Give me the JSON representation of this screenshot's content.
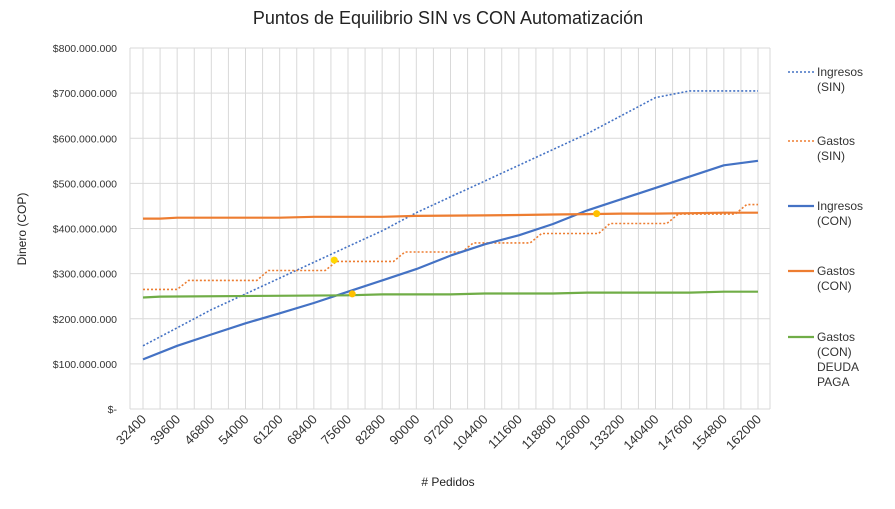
{
  "chart_data": {
    "type": "line",
    "title": "Puntos de Equilibrio SIN vs CON Automatización",
    "xlabel": "# Pedidos",
    "ylabel": "Dinero (COP)",
    "xlim": [
      32400,
      162000
    ],
    "ylim": [
      0,
      800000000
    ],
    "x_ticks": [
      "32400",
      "39600",
      "46800",
      "54000",
      "61200",
      "68400",
      "75600",
      "82800",
      "90000",
      "97200",
      "104400",
      "111600",
      "118800",
      "126000",
      "133200",
      "140400",
      "147600",
      "154800",
      "162000"
    ],
    "y_ticks": [
      "$-",
      "$100.000.000",
      "$200.000.000",
      "$300.000.000",
      "$400.000.000",
      "$500.000.000",
      "$600.000.000",
      "$700.000.000",
      "$800.000.000"
    ],
    "grid": true,
    "legend_position": "right",
    "series": [
      {
        "name": "Ingresos (SIN)",
        "color": "#4472C4",
        "style": "dotted",
        "x": [
          32400,
          39600,
          46800,
          54000,
          61200,
          68400,
          75600,
          82800,
          90000,
          97200,
          104400,
          111600,
          118800,
          126000,
          133200,
          140400,
          147600,
          154800,
          162000
        ],
        "values": [
          140000000,
          180000000,
          220000000,
          255000000,
          290000000,
          325000000,
          360000000,
          395000000,
          435000000,
          470000000,
          505000000,
          540000000,
          575000000,
          610000000,
          650000000,
          690000000,
          705000000,
          705000000,
          705000000
        ]
      },
      {
        "name": "Gastos (SIN)",
        "color": "#ED7D31",
        "style": "dotted",
        "x": [
          32400,
          34800,
          37200,
          39600,
          42000,
          44400,
          46800,
          49200,
          51600,
          54000,
          56400,
          58800,
          61200,
          63600,
          66000,
          68400,
          70800,
          73200,
          75600,
          78000,
          80400,
          82800,
          85200,
          87600,
          90000,
          92400,
          94800,
          97200,
          99600,
          102000,
          104400,
          106800,
          109200,
          111600,
          114000,
          116400,
          118800,
          121200,
          123600,
          126000,
          128400,
          130800,
          133200,
          135600,
          138000,
          140400,
          142800,
          145200,
          147600,
          150000,
          152400,
          154800,
          157200,
          159600,
          162000
        ],
        "values": [
          265000000,
          265000000,
          265000000,
          265000000,
          285000000,
          285000000,
          285000000,
          285000000,
          285000000,
          285000000,
          285000000,
          307000000,
          307000000,
          307000000,
          307000000,
          307000000,
          307000000,
          327000000,
          327000000,
          327000000,
          327000000,
          327000000,
          327000000,
          348000000,
          348000000,
          348000000,
          348000000,
          348000000,
          348000000,
          368000000,
          368000000,
          368000000,
          368000000,
          368000000,
          368000000,
          389000000,
          389000000,
          389000000,
          389000000,
          389000000,
          389000000,
          411000000,
          411000000,
          411000000,
          411000000,
          411000000,
          411000000,
          432000000,
          432000000,
          432000000,
          432000000,
          432000000,
          432000000,
          453000000,
          453000000
        ]
      },
      {
        "name": "Ingresos (CON)",
        "color": "#4472C4",
        "style": "solid",
        "x": [
          32400,
          39600,
          46800,
          54000,
          61200,
          68400,
          75600,
          82800,
          90000,
          97200,
          104400,
          111600,
          118800,
          126000,
          133200,
          140400,
          147600,
          154800,
          162000
        ],
        "values": [
          110000000,
          140000000,
          165000000,
          190000000,
          212000000,
          235000000,
          260000000,
          285000000,
          310000000,
          340000000,
          365000000,
          385000000,
          410000000,
          440000000,
          465000000,
          490000000,
          515000000,
          540000000,
          550000000
        ]
      },
      {
        "name": "Gastos (CON)",
        "color": "#ED7D31",
        "style": "solid",
        "x": [
          32400,
          36000,
          39600,
          54000,
          61200,
          68400,
          82800,
          90000,
          104400,
          111600,
          118800,
          126000,
          133200,
          140400,
          147600,
          154800,
          162000
        ],
        "values": [
          422000000,
          422000000,
          424000000,
          424000000,
          424000000,
          426000000,
          426000000,
          428000000,
          429000000,
          430000000,
          431000000,
          432000000,
          433000000,
          433000000,
          434000000,
          435000000,
          435000000
        ]
      },
      {
        "name": "Gastos (CON) DEUDA PAGA",
        "color": "#70AD47",
        "style": "solid",
        "x": [
          32400,
          36000,
          75600,
          82800,
          97200,
          104400,
          118800,
          126000,
          147600,
          154800,
          162000
        ],
        "values": [
          247000000,
          249000000,
          252000000,
          254000000,
          254000000,
          256000000,
          256000000,
          258000000,
          258000000,
          260000000,
          260000000
        ]
      }
    ],
    "points": [
      {
        "x": 72700,
        "y": 330000000,
        "color": "#FFD700"
      },
      {
        "x": 76500,
        "y": 255000000,
        "color": "#FFC000"
      },
      {
        "x": 128000,
        "y": 433000000,
        "color": "#FFC000"
      }
    ],
    "legend": [
      {
        "lines": [
          "Ingresos",
          "(SIN)"
        ],
        "color": "#4472C4",
        "style": "dotted"
      },
      {
        "lines": [
          "Gastos",
          "(SIN)"
        ],
        "color": "#ED7D31",
        "style": "dotted"
      },
      {
        "lines": [
          "Ingresos",
          "(CON)"
        ],
        "color": "#4472C4",
        "style": "solid"
      },
      {
        "lines": [
          "Gastos",
          "(CON)"
        ],
        "color": "#ED7D31",
        "style": "solid"
      },
      {
        "lines": [
          "Gastos",
          "(CON)",
          "DEUDA",
          "PAGA"
        ],
        "color": "#70AD47",
        "style": "solid"
      }
    ]
  }
}
